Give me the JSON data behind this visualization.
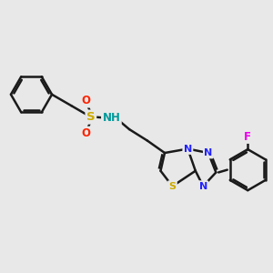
{
  "bg_color": "#e8e8e8",
  "bond_color": "#1a1a1a",
  "bond_width": 1.8,
  "atom_colors": {
    "N": "#2222ff",
    "S_sulfo": "#ccaa00",
    "S_thia": "#ccaa00",
    "O": "#ff2200",
    "F": "#ee00ee",
    "NH": "#009999"
  }
}
